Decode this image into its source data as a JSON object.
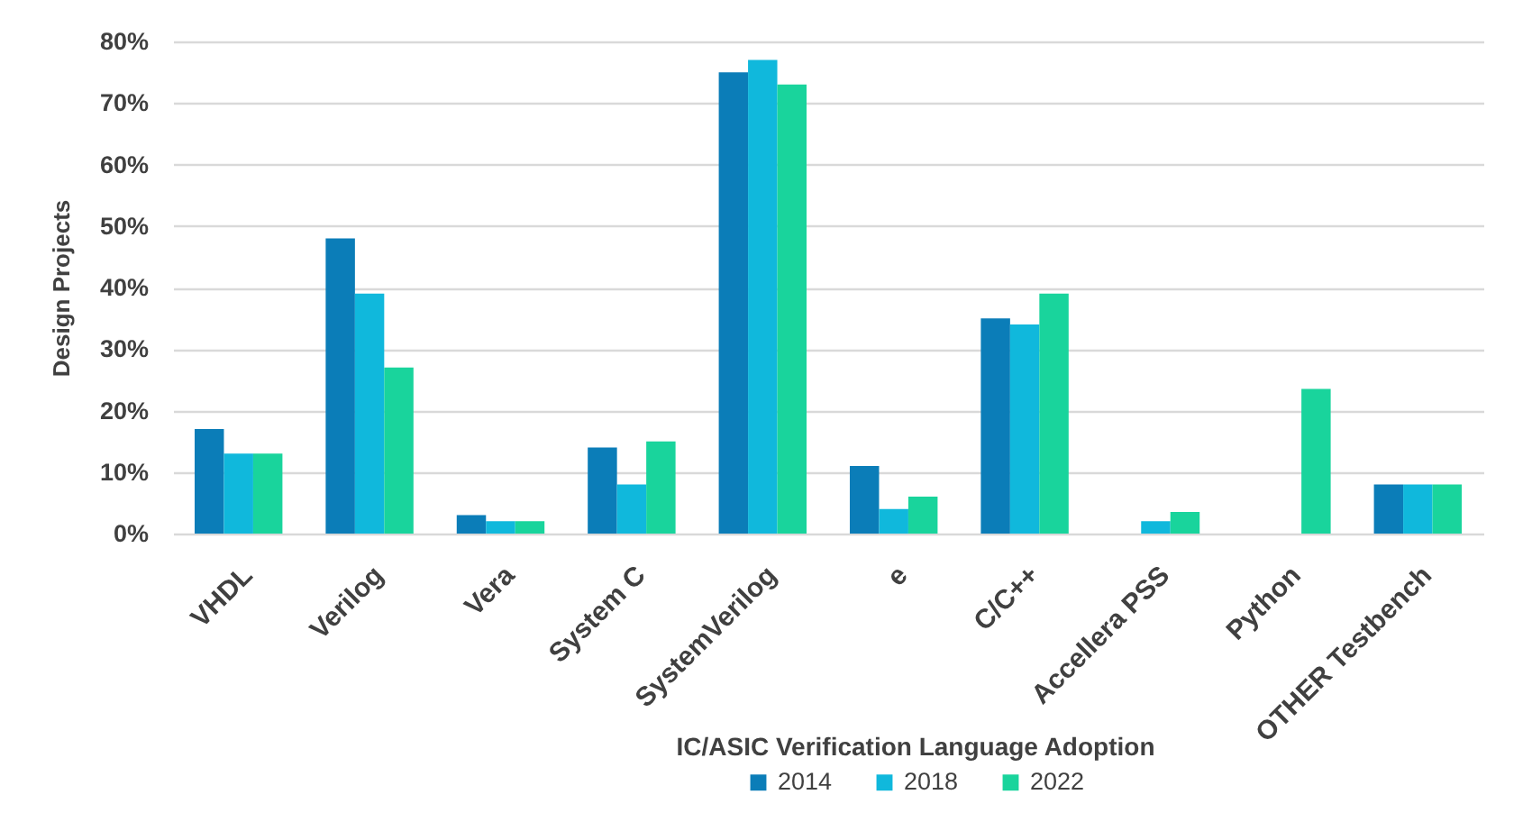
{
  "chart_data": {
    "type": "bar",
    "ylabel": "Design Projects",
    "legend_title": "IC/ASIC  Verification  Language Adoption",
    "categories": [
      "VHDL",
      "Verilog",
      "Vera",
      "System C",
      "SystemVerilog",
      "e",
      "C/C++",
      "Accellera PSS",
      "Python",
      "OTHER Testbench"
    ],
    "series": [
      {
        "name": "2014",
        "color": "#0b7db8",
        "values": [
          17,
          48,
          3,
          14,
          75,
          11,
          35,
          null,
          null,
          8
        ]
      },
      {
        "name": "2018",
        "color": "#10b8dc",
        "values": [
          13,
          39,
          2,
          8,
          77,
          4,
          34,
          2,
          null,
          8
        ]
      },
      {
        "name": "2022",
        "color": "#19d49c",
        "values": [
          13,
          27,
          2,
          15,
          73,
          6,
          39,
          3.5,
          23.5,
          8
        ]
      }
    ],
    "ylim": [
      0,
      80
    ],
    "yticks": [
      {
        "value": 0,
        "label": "0%"
      },
      {
        "value": 10,
        "label": "10%"
      },
      {
        "value": 20,
        "label": "20%"
      },
      {
        "value": 30,
        "label": "30%"
      },
      {
        "value": 40,
        "label": "40%"
      },
      {
        "value": 50,
        "label": "50%"
      },
      {
        "value": 60,
        "label": "60%"
      },
      {
        "value": 70,
        "label": "70%"
      },
      {
        "value": 80,
        "label": "80%"
      }
    ],
    "grid": "y",
    "legend": "bottom"
  }
}
